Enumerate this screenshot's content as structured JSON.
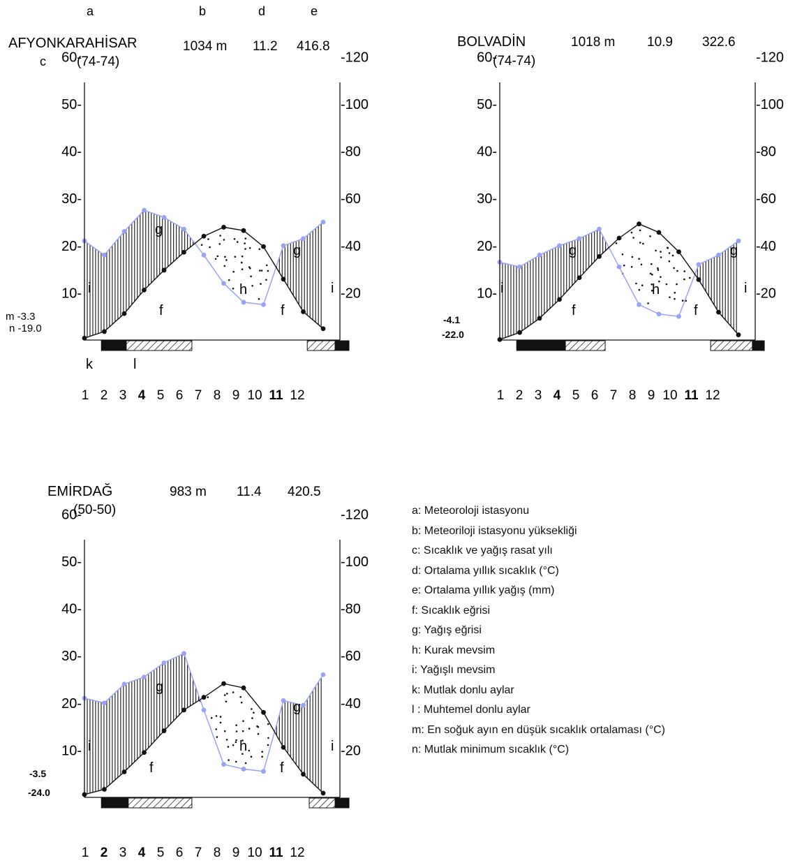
{
  "chart_data": [
    {
      "type": "climate-diagram",
      "station": "AFYONKARAHİSAR",
      "period": "(74-74)",
      "elevation": "1034 m",
      "mean_temp": "11.2",
      "annual_precip": "416.8",
      "extreme_labels": [
        "m  -3.3",
        "n  -19.0"
      ],
      "header_letters": {
        "a": "a",
        "b": "b",
        "c": "c",
        "d": "d",
        "e": "e"
      },
      "curve_letters": {
        "f": "f",
        "g": "g",
        "h": "h",
        "i": "i",
        "k": "k",
        "l": "l"
      },
      "months": [
        "1",
        "2",
        "3",
        "4",
        "5",
        "6",
        "7",
        "8",
        "9",
        "10",
        "11",
        "12"
      ],
      "temp_ticks": [
        "10-",
        "20-",
        "30-",
        "40-",
        "50-",
        "60-"
      ],
      "precip_ticks": [
        "-20",
        "-40",
        "-60",
        "-80",
        "-100",
        "-120"
      ],
      "temp_axis_range": [
        0,
        63
      ],
      "precip_axis_range": [
        0,
        126
      ],
      "temperature_c": [
        0.4,
        1.8,
        5.6,
        10.6,
        14.8,
        18.6,
        22.0,
        23.9,
        23.2,
        19.8,
        12.9,
        6.0,
        2.4
      ],
      "precipitation_mm": [
        42,
        36,
        46,
        55,
        52,
        47,
        36,
        24,
        16,
        15,
        40,
        43,
        50
      ],
      "absolute_frost": [
        [
          0.85,
          2.1
        ],
        [
          12.6,
          13.3
        ]
      ],
      "possible_frost": [
        [
          2.1,
          5.4
        ],
        [
          11.2,
          12.6
        ]
      ]
    },
    {
      "type": "climate-diagram",
      "station": "BOLVADİN",
      "period": "(74-74)",
      "elevation": "1018 m",
      "mean_temp": "10.9",
      "annual_precip": "322.6",
      "extreme_labels": [
        "-4.1",
        "-22.0"
      ],
      "curve_letters": {
        "f": "f",
        "g": "g",
        "h": "h",
        "i": "i"
      },
      "months": [
        "1",
        "2",
        "3",
        "4",
        "5",
        "6",
        "7",
        "8",
        "9",
        "10",
        "11",
        "12"
      ],
      "temp_ticks": [
        "10-",
        "20-",
        "30-",
        "40-",
        "50-",
        "60-"
      ],
      "precip_ticks": [
        "-20",
        "-40",
        "-60",
        "-80",
        "-100",
        "-120"
      ],
      "temp_axis_range": [
        0,
        63
      ],
      "precip_axis_range": [
        0,
        126
      ],
      "temperature_c": [
        0.1,
        1.6,
        4.6,
        8.6,
        13.2,
        17.7,
        21.6,
        24.6,
        22.8,
        18.7,
        12.8,
        5.9,
        1.1
      ],
      "precipitation_mm": [
        33,
        31,
        36,
        40,
        43,
        47,
        31,
        15,
        11,
        10,
        32,
        36,
        42
      ],
      "absolute_frost": [
        [
          0.85,
          3.3
        ],
        [
          12.7,
          13.3
        ]
      ],
      "possible_frost": [
        [
          3.3,
          5.3
        ],
        [
          10.6,
          12.7
        ]
      ]
    },
    {
      "type": "climate-diagram",
      "station": "EMİRDAĞ",
      "period": "(50-50)",
      "elevation": "983 m",
      "mean_temp": "11.4",
      "annual_precip": "420.5",
      "extreme_labels": [
        "-3.5",
        "-24.0"
      ],
      "curve_letters": {
        "f": "f",
        "g": "g",
        "h": "h",
        "i": "i"
      },
      "months": [
        "1",
        "2",
        "3",
        "4",
        "5",
        "6",
        "7",
        "8",
        "9",
        "10",
        "11",
        "12"
      ],
      "temp_ticks": [
        "10-",
        "20-",
        "30-",
        "40-",
        "50-",
        "60-"
      ],
      "precip_ticks": [
        "-20",
        "-40",
        "-60",
        "-80",
        "-100",
        "-120"
      ],
      "temp_axis_range": [
        0,
        63
      ],
      "precip_axis_range": [
        0,
        126
      ],
      "temperature_c": [
        0.6,
        1.7,
        5.4,
        9.5,
        14.1,
        18.5,
        21.2,
        24.1,
        23.2,
        18.0,
        10.6,
        4.9,
        0.9
      ],
      "precipitation_mm": [
        42,
        40,
        48,
        51,
        57,
        61,
        37,
        14,
        12,
        11,
        41,
        39,
        52
      ],
      "absolute_frost": [
        [
          0.85,
          2.2
        ],
        [
          12.6,
          13.3
        ]
      ],
      "possible_frost": [
        [
          2.2,
          5.4
        ],
        [
          11.3,
          12.6
        ]
      ]
    }
  ],
  "legend": [
    "a: Meteoroloji istasyonu",
    "b: Meteoriloji istasyonu yüksekliği",
    "c: Sıcaklık ve yağış rasat yılı",
    "d: Ortalama yıllık sıcaklık (°C)",
    "e: Ortalama yıllık yağış (mm)",
    "f: Sıcaklık eğrisi",
    "g: Yağış eğrisi",
    "h: Kurak mevsim",
    "i: Yağışlı mevsim",
    "k: Mutlak donlu aylar",
    "l : Muhtemel donlu aylar",
    "m: En soğuk ayın en düşük sıcaklık ortalaması (°C)",
    "n: Mutlak minimum sıcaklık (°C)"
  ],
  "colors": {
    "temperature": "#111111",
    "precipitation": "#9aa3f3",
    "bars": "#111111",
    "dry_dots": "#111111"
  }
}
